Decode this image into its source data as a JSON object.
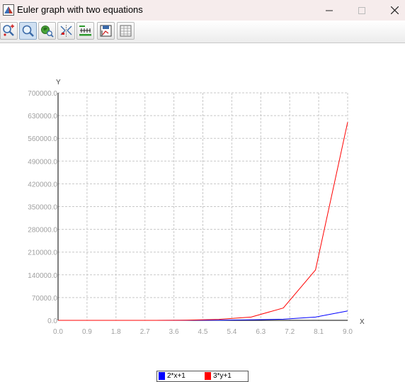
{
  "window": {
    "title": "Euler graph with two equations"
  },
  "toolbar": {
    "buttons": [
      {
        "name": "zoom-in-icon",
        "active": false
      },
      {
        "name": "zoom-icon",
        "active": true
      },
      {
        "name": "pan-icon",
        "active": false
      },
      {
        "name": "auto-scale-icon",
        "active": false
      },
      {
        "name": "axis-settings-icon",
        "active": false
      },
      {
        "name": "save-chart-icon",
        "active": false
      },
      {
        "name": "data-table-icon",
        "active": false
      }
    ]
  },
  "chart_data": {
    "type": "line",
    "title": "",
    "xlabel": "X",
    "ylabel": "Y",
    "xlim": [
      0,
      9
    ],
    "ylim": [
      0,
      700000
    ],
    "grid": true,
    "legend_position": "bottom",
    "x_ticks": [
      "0.0",
      "0.9",
      "1.8",
      "2.7",
      "3.6",
      "4.5",
      "5.4",
      "6.3",
      "7.2",
      "8.1",
      "9.0"
    ],
    "y_ticks": [
      "0.0",
      "70000.0",
      "140000.0",
      "210000.0",
      "280000.0",
      "350000.0",
      "420000.0",
      "490000.0",
      "560000.0",
      "630000.0",
      "700000.0"
    ],
    "x": [
      0,
      1,
      2,
      3,
      4,
      5,
      6,
      7,
      8,
      9
    ],
    "series": [
      {
        "name": "2*x+1",
        "color": "#0000ff",
        "values": [
          0,
          0,
          0,
          0,
          200,
          700,
          1500,
          3500,
          10000,
          29000
        ]
      },
      {
        "name": "3*y+1",
        "color": "#ff0000",
        "values": [
          0,
          0,
          0,
          100,
          500,
          3000,
          10000,
          38000,
          155000,
          610000
        ]
      }
    ]
  }
}
